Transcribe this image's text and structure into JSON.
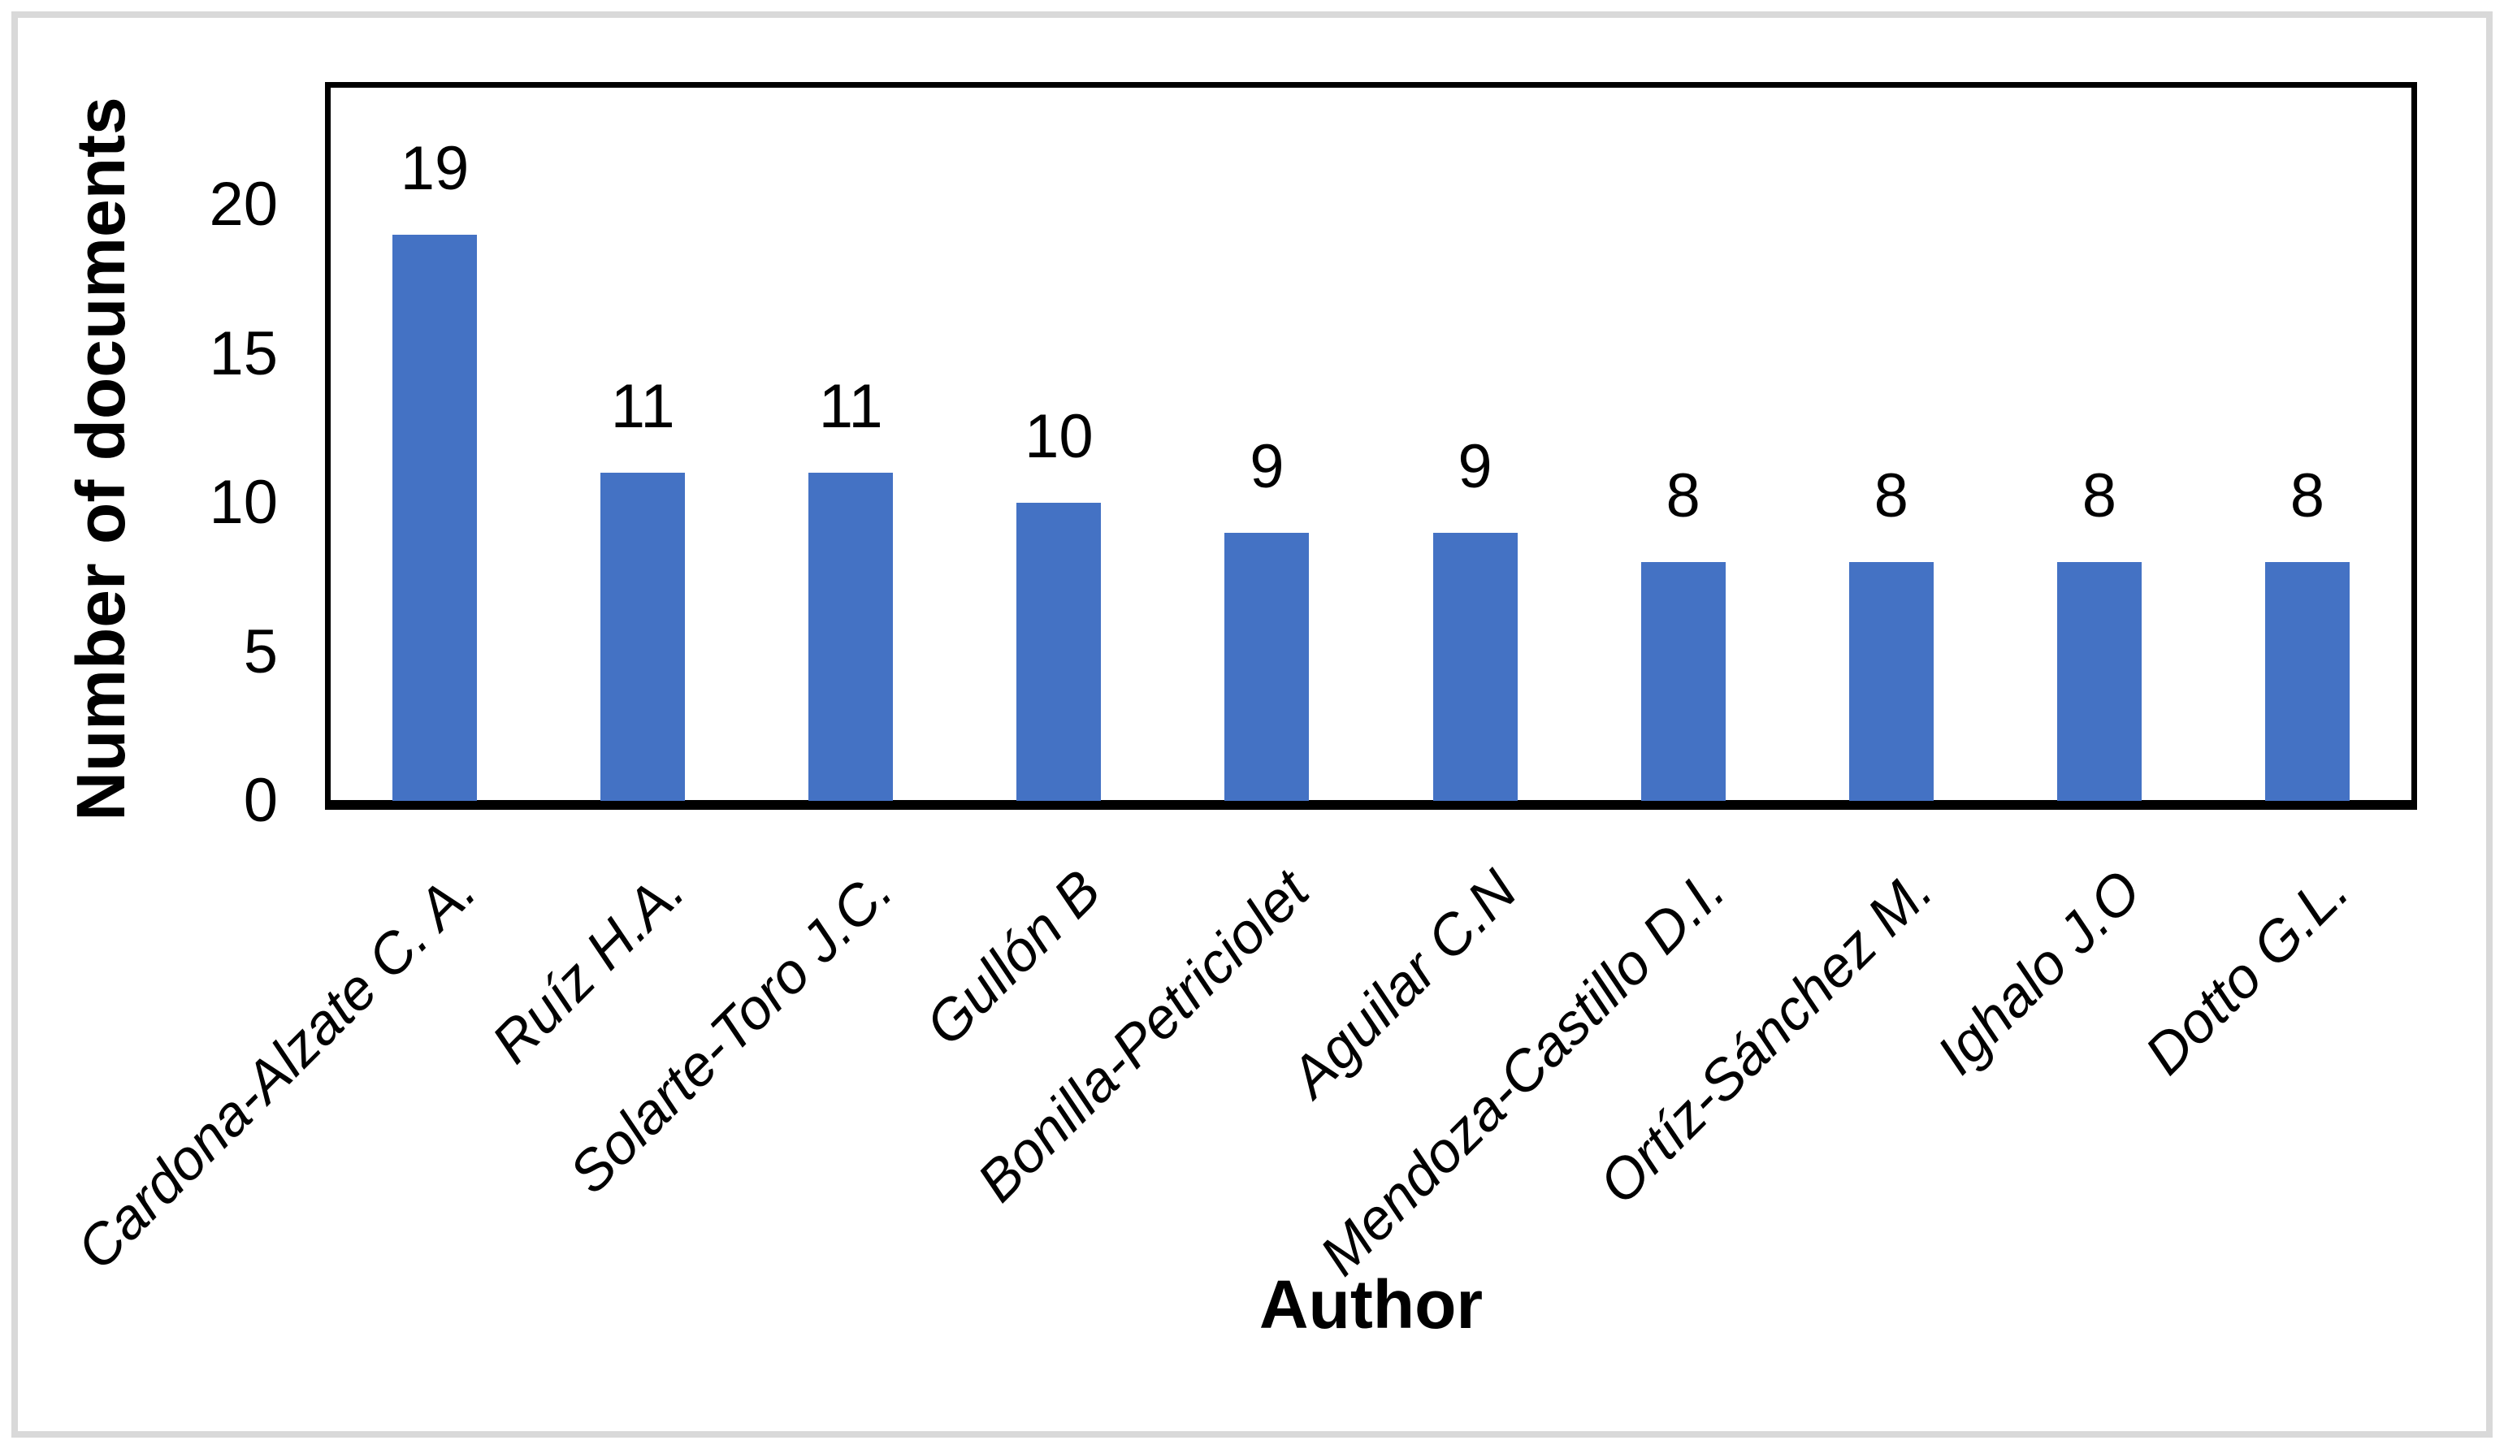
{
  "chart_data": {
    "type": "bar",
    "title": "",
    "categories": [
      "Cardona-Alzate C. A.",
      "Ruíz H.A.",
      "Solarte-Toro J.C.",
      "Gullón B",
      "Bonilla-Petriciolet",
      "Aguilar C.N",
      "Mendoza-Castillo D.I.",
      "Ortíz-Sánchez M.",
      "Ighalo J.O",
      "Dotto G.L."
    ],
    "values": [
      19,
      11,
      11,
      10,
      9,
      9,
      8,
      8,
      8,
      8
    ],
    "data_labels": [
      "19",
      "11",
      "11",
      "10",
      "9",
      "9",
      "8",
      "8",
      "8",
      "8"
    ],
    "xlabel": "Author",
    "ylabel": "Number of documents",
    "yticks": [
      0,
      5,
      10,
      15,
      20
    ],
    "ytick_labels": [
      "0",
      "5",
      "10",
      "15",
      "20"
    ],
    "ylim": [
      0,
      24
    ],
    "grid": false,
    "legend": false,
    "bar_color": "#4472C4",
    "axis_color": "#000000",
    "frame_color": "#D9D9D9",
    "background_color": "#FFFFFF"
  }
}
